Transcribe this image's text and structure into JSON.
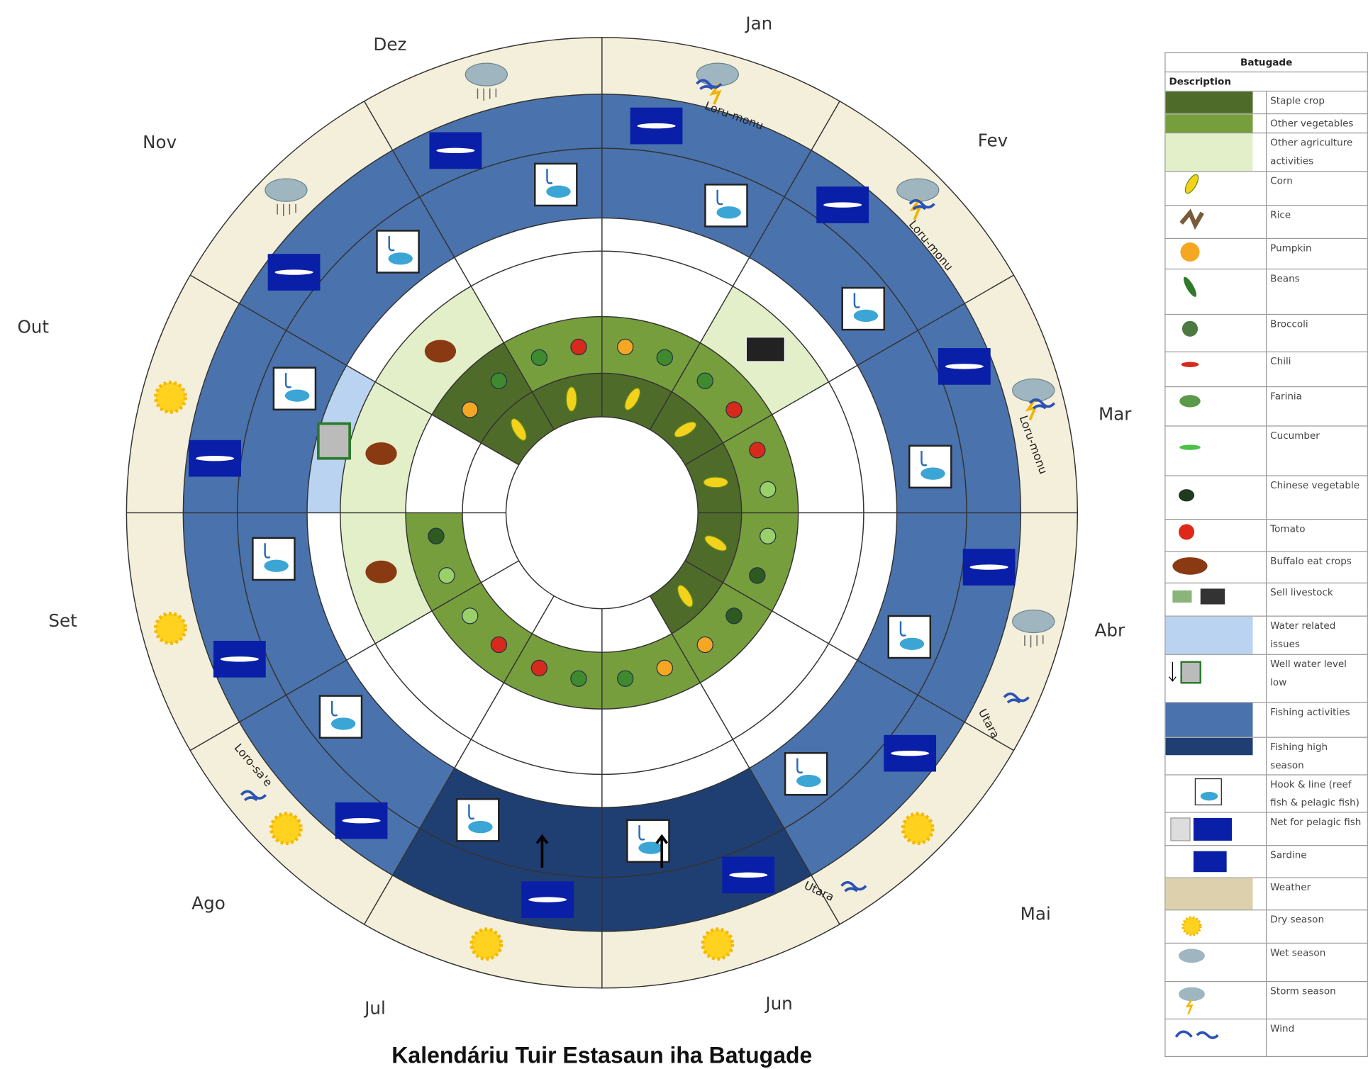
{
  "months": [
    "Jan",
    "Fev",
    "Mar",
    "Abr",
    "Mai",
    "Jun",
    "Jul",
    "Ago",
    "Set",
    "Out",
    "Nov",
    "Dez"
  ],
  "wind_labels": [
    "Loru-monu",
    "Loru-monu",
    "Loru-monu",
    "Utara",
    "Utara",
    "Loro-sa'e"
  ],
  "caption": "Kalendáriu Tuir Estasaun iha Batugade",
  "legend": {
    "title": "Batugade",
    "header": "Description",
    "items": [
      "Staple crop",
      "Other vegetables",
      "Other agriculture activities",
      "Corn",
      "Rice",
      "Pumpkin",
      "Beans",
      "Broccoli",
      "Chili",
      "Farinia",
      "Cucumber",
      "Chinese vegetable",
      "Tomato",
      "Buffalo eat crops",
      "Sell livestock",
      "Water related issues",
      "Well water level low",
      "Fishing activities",
      "Fishing high season",
      "Hook & line (reef fish & pelagic fish)",
      "Net for pelagic fish",
      "Sardine",
      "Weather",
      "Dry season",
      "Wet season",
      "Storm season",
      "Wind"
    ]
  }
}
